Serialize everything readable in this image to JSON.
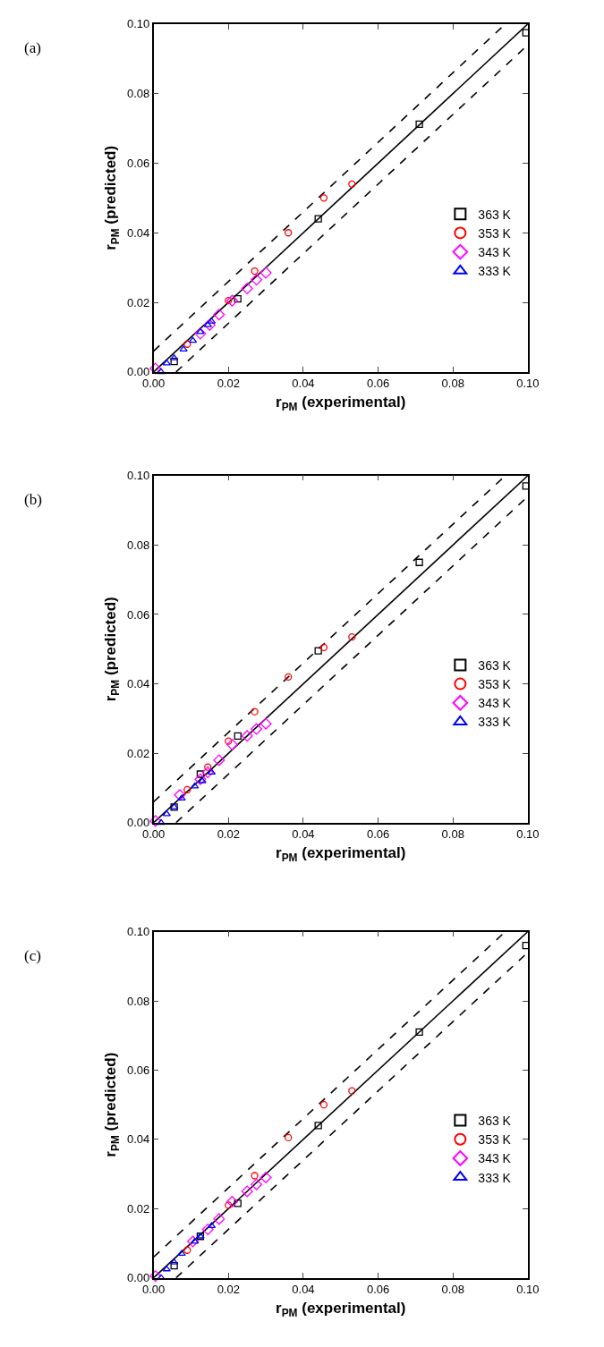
{
  "chart_data": [
    {
      "type": "scatter",
      "xlabel": "r$_{PM}$ (experimental)",
      "ylabel": "r$_{PM}$ (predicted)",
      "annotations": [
        "(a)"
      ],
      "xlim": [
        0,
        0.1
      ],
      "ylim": [
        0,
        0.1
      ],
      "xticks": [
        {
          "value": 0,
          "label": "0.00"
        },
        {
          "value": 0.02,
          "label": "0.02"
        },
        {
          "value": 0.04,
          "label": "0.04"
        },
        {
          "value": 0.06,
          "label": "0.06"
        },
        {
          "value": 0.08,
          "label": "0.08"
        },
        {
          "value": 0.1,
          "label": "0.10"
        }
      ],
      "yticks": [
        {
          "value": 0,
          "label": "0.00"
        },
        {
          "value": 0.02,
          "label": "0.02"
        },
        {
          "value": 0.04,
          "label": "0.04"
        },
        {
          "value": 0.06,
          "label": "0.06"
        },
        {
          "value": 0.08,
          "label": "0.08"
        },
        {
          "value": 0.1,
          "label": "0.10"
        }
      ],
      "legend": "bottom right",
      "series": [
        {
          "name": "363 K",
          "color": "#000000",
          "marker": "square",
          "x": [
            0.0055,
            0.0225,
            0.044,
            0.071,
            0.0995
          ],
          "values": [
            0.003,
            0.021,
            0.044,
            0.0712,
            0.0975
          ]
        },
        {
          "name": "353 K",
          "color": "#ff0000",
          "marker": "circle",
          "x": [
            0.009,
            0.02,
            0.027,
            0.036,
            0.0455,
            0.053
          ],
          "values": [
            0.008,
            0.0205,
            0.029,
            0.04,
            0.05,
            0.054
          ]
        },
        {
          "name": "343 K",
          "color": "#ff00ff",
          "marker": "diamond",
          "x": [
            0.0005,
            0.0125,
            0.015,
            0.0175,
            0.021,
            0.025,
            0.0275,
            0.03
          ],
          "values": [
            0.001,
            0.011,
            0.0135,
            0.0165,
            0.0205,
            0.024,
            0.0265,
            0.0285
          ]
        },
        {
          "name": "333 K",
          "color": "#0000ff",
          "marker": "triangle",
          "x": [
            0.002,
            0.0035,
            0.0055,
            0.008,
            0.0105,
            0.0125,
            0.0145,
            0.0155
          ],
          "values": [
            0.0,
            0.0025,
            0.004,
            0.0065,
            0.009,
            0.0115,
            0.0135,
            0.0145
          ]
        },
        {
          "type": "line",
          "color": "#000000",
          "line_style": "solid",
          "x": [
            0,
            0.1
          ],
          "values": [
            0,
            0.1
          ]
        },
        {
          "type": "line",
          "color": "#000000",
          "line_style": "dashed",
          "x": [
            0,
            0.094
          ],
          "values": [
            0.006,
            0.1
          ]
        },
        {
          "type": "line",
          "color": "#000000",
          "line_style": "dashed",
          "x": [
            0.006,
            0.1
          ],
          "values": [
            0,
            0.094
          ]
        }
      ]
    },
    {
      "type": "scatter",
      "xlabel": "r$_{PM}$ (experimental)",
      "ylabel": "r$_{PM}$ (predicted)",
      "annotations": [
        "(b)"
      ],
      "xlim": [
        0,
        0.1
      ],
      "ylim": [
        0,
        0.1
      ],
      "xticks": [
        {
          "value": 0,
          "label": "0.00"
        },
        {
          "value": 0.02,
          "label": "0.02"
        },
        {
          "value": 0.04,
          "label": "0.04"
        },
        {
          "value": 0.06,
          "label": "0.06"
        },
        {
          "value": 0.08,
          "label": "0.08"
        },
        {
          "value": 0.1,
          "label": "0.10"
        }
      ],
      "yticks": [
        {
          "value": 0,
          "label": "0.00"
        },
        {
          "value": 0.02,
          "label": "0.02"
        },
        {
          "value": 0.04,
          "label": "0.04"
        },
        {
          "value": 0.06,
          "label": "0.06"
        },
        {
          "value": 0.08,
          "label": "0.08"
        },
        {
          "value": 0.1,
          "label": "0.10"
        }
      ],
      "legend": "bottom right",
      "series": [
        {
          "name": "363 K",
          "color": "#000000",
          "marker": "square",
          "x": [
            0.0055,
            0.0125,
            0.0225,
            0.044,
            0.071,
            0.0995
          ],
          "values": [
            0.0045,
            0.014,
            0.025,
            0.0495,
            0.075,
            0.097
          ]
        },
        {
          "name": "353 K",
          "color": "#ff0000",
          "marker": "circle",
          "x": [
            0.009,
            0.0145,
            0.02,
            0.027,
            0.036,
            0.0455,
            0.053
          ],
          "values": [
            0.0095,
            0.016,
            0.0235,
            0.032,
            0.042,
            0.0505,
            0.0535
          ]
        },
        {
          "name": "343 K",
          "color": "#ff00ff",
          "marker": "diamond",
          "x": [
            0.0005,
            0.007,
            0.0125,
            0.0145,
            0.0175,
            0.021,
            0.025,
            0.0275,
            0.03
          ],
          "values": [
            0.0005,
            0.008,
            0.0125,
            0.0145,
            0.018,
            0.0225,
            0.025,
            0.027,
            0.0285
          ]
        },
        {
          "name": "333 K",
          "color": "#0000ff",
          "marker": "triangle",
          "x": [
            0.002,
            0.0035,
            0.0055,
            0.0075,
            0.011,
            0.013,
            0.0155
          ],
          "values": [
            0.0,
            0.0025,
            0.0045,
            0.007,
            0.0105,
            0.012,
            0.0145
          ]
        },
        {
          "type": "line",
          "color": "#000000",
          "line_style": "solid",
          "x": [
            0,
            0.1
          ],
          "values": [
            0,
            0.1
          ]
        },
        {
          "type": "line",
          "color": "#000000",
          "line_style": "dashed",
          "x": [
            0,
            0.094
          ],
          "values": [
            0.006,
            0.1
          ]
        },
        {
          "type": "line",
          "color": "#000000",
          "line_style": "dashed",
          "x": [
            0.006,
            0.1
          ],
          "values": [
            0,
            0.094
          ]
        }
      ]
    },
    {
      "type": "scatter",
      "xlabel": "r$_{PM}$ (experimental)",
      "ylabel": "r$_{PM}$ (predicted)",
      "annotations": [
        "(c)"
      ],
      "xlim": [
        0,
        0.1
      ],
      "ylim": [
        0,
        0.1
      ],
      "xticks": [
        {
          "value": 0,
          "label": "0.00"
        },
        {
          "value": 0.02,
          "label": "0.02"
        },
        {
          "value": 0.04,
          "label": "0.04"
        },
        {
          "value": 0.06,
          "label": "0.06"
        },
        {
          "value": 0.08,
          "label": "0.08"
        },
        {
          "value": 0.1,
          "label": "0.10"
        }
      ],
      "yticks": [
        {
          "value": 0,
          "label": "0.00"
        },
        {
          "value": 0.02,
          "label": "0.02"
        },
        {
          "value": 0.04,
          "label": "0.04"
        },
        {
          "value": 0.06,
          "label": "0.06"
        },
        {
          "value": 0.08,
          "label": "0.08"
        },
        {
          "value": 0.1,
          "label": "0.10"
        }
      ],
      "legend": "bottom right",
      "series": [
        {
          "name": "363 K",
          "color": "#000000",
          "marker": "square",
          "x": [
            0.0055,
            0.0125,
            0.0225,
            0.044,
            0.071,
            0.0995
          ],
          "values": [
            0.0035,
            0.012,
            0.0215,
            0.044,
            0.071,
            0.096
          ]
        },
        {
          "name": "353 K",
          "color": "#ff0000",
          "marker": "circle",
          "x": [
            0.009,
            0.02,
            0.027,
            0.036,
            0.0455,
            0.053
          ],
          "values": [
            0.008,
            0.021,
            0.0295,
            0.0405,
            0.05,
            0.054
          ]
        },
        {
          "name": "343 K",
          "color": "#ff00ff",
          "marker": "diamond",
          "x": [
            0.0005,
            0.0105,
            0.0145,
            0.0175,
            0.021,
            0.025,
            0.0275,
            0.03
          ],
          "values": [
            0.0005,
            0.0105,
            0.014,
            0.017,
            0.022,
            0.025,
            0.027,
            0.029
          ]
        },
        {
          "name": "333 K",
          "color": "#0000ff",
          "marker": "triangle",
          "x": [
            0.002,
            0.0035,
            0.0055,
            0.0075,
            0.011,
            0.0125,
            0.0155
          ],
          "values": [
            0.0,
            0.0025,
            0.0045,
            0.007,
            0.0105,
            0.012,
            0.015
          ]
        },
        {
          "type": "line",
          "color": "#000000",
          "line_style": "solid",
          "x": [
            0,
            0.1
          ],
          "values": [
            0,
            0.1
          ]
        },
        {
          "type": "line",
          "color": "#000000",
          "line_style": "dashed",
          "x": [
            0,
            0.094
          ],
          "values": [
            0.006,
            0.1
          ]
        },
        {
          "type": "line",
          "color": "#000000",
          "line_style": "dashed",
          "x": [
            0.006,
            0.1
          ],
          "values": [
            0,
            0.094
          ]
        }
      ]
    }
  ]
}
